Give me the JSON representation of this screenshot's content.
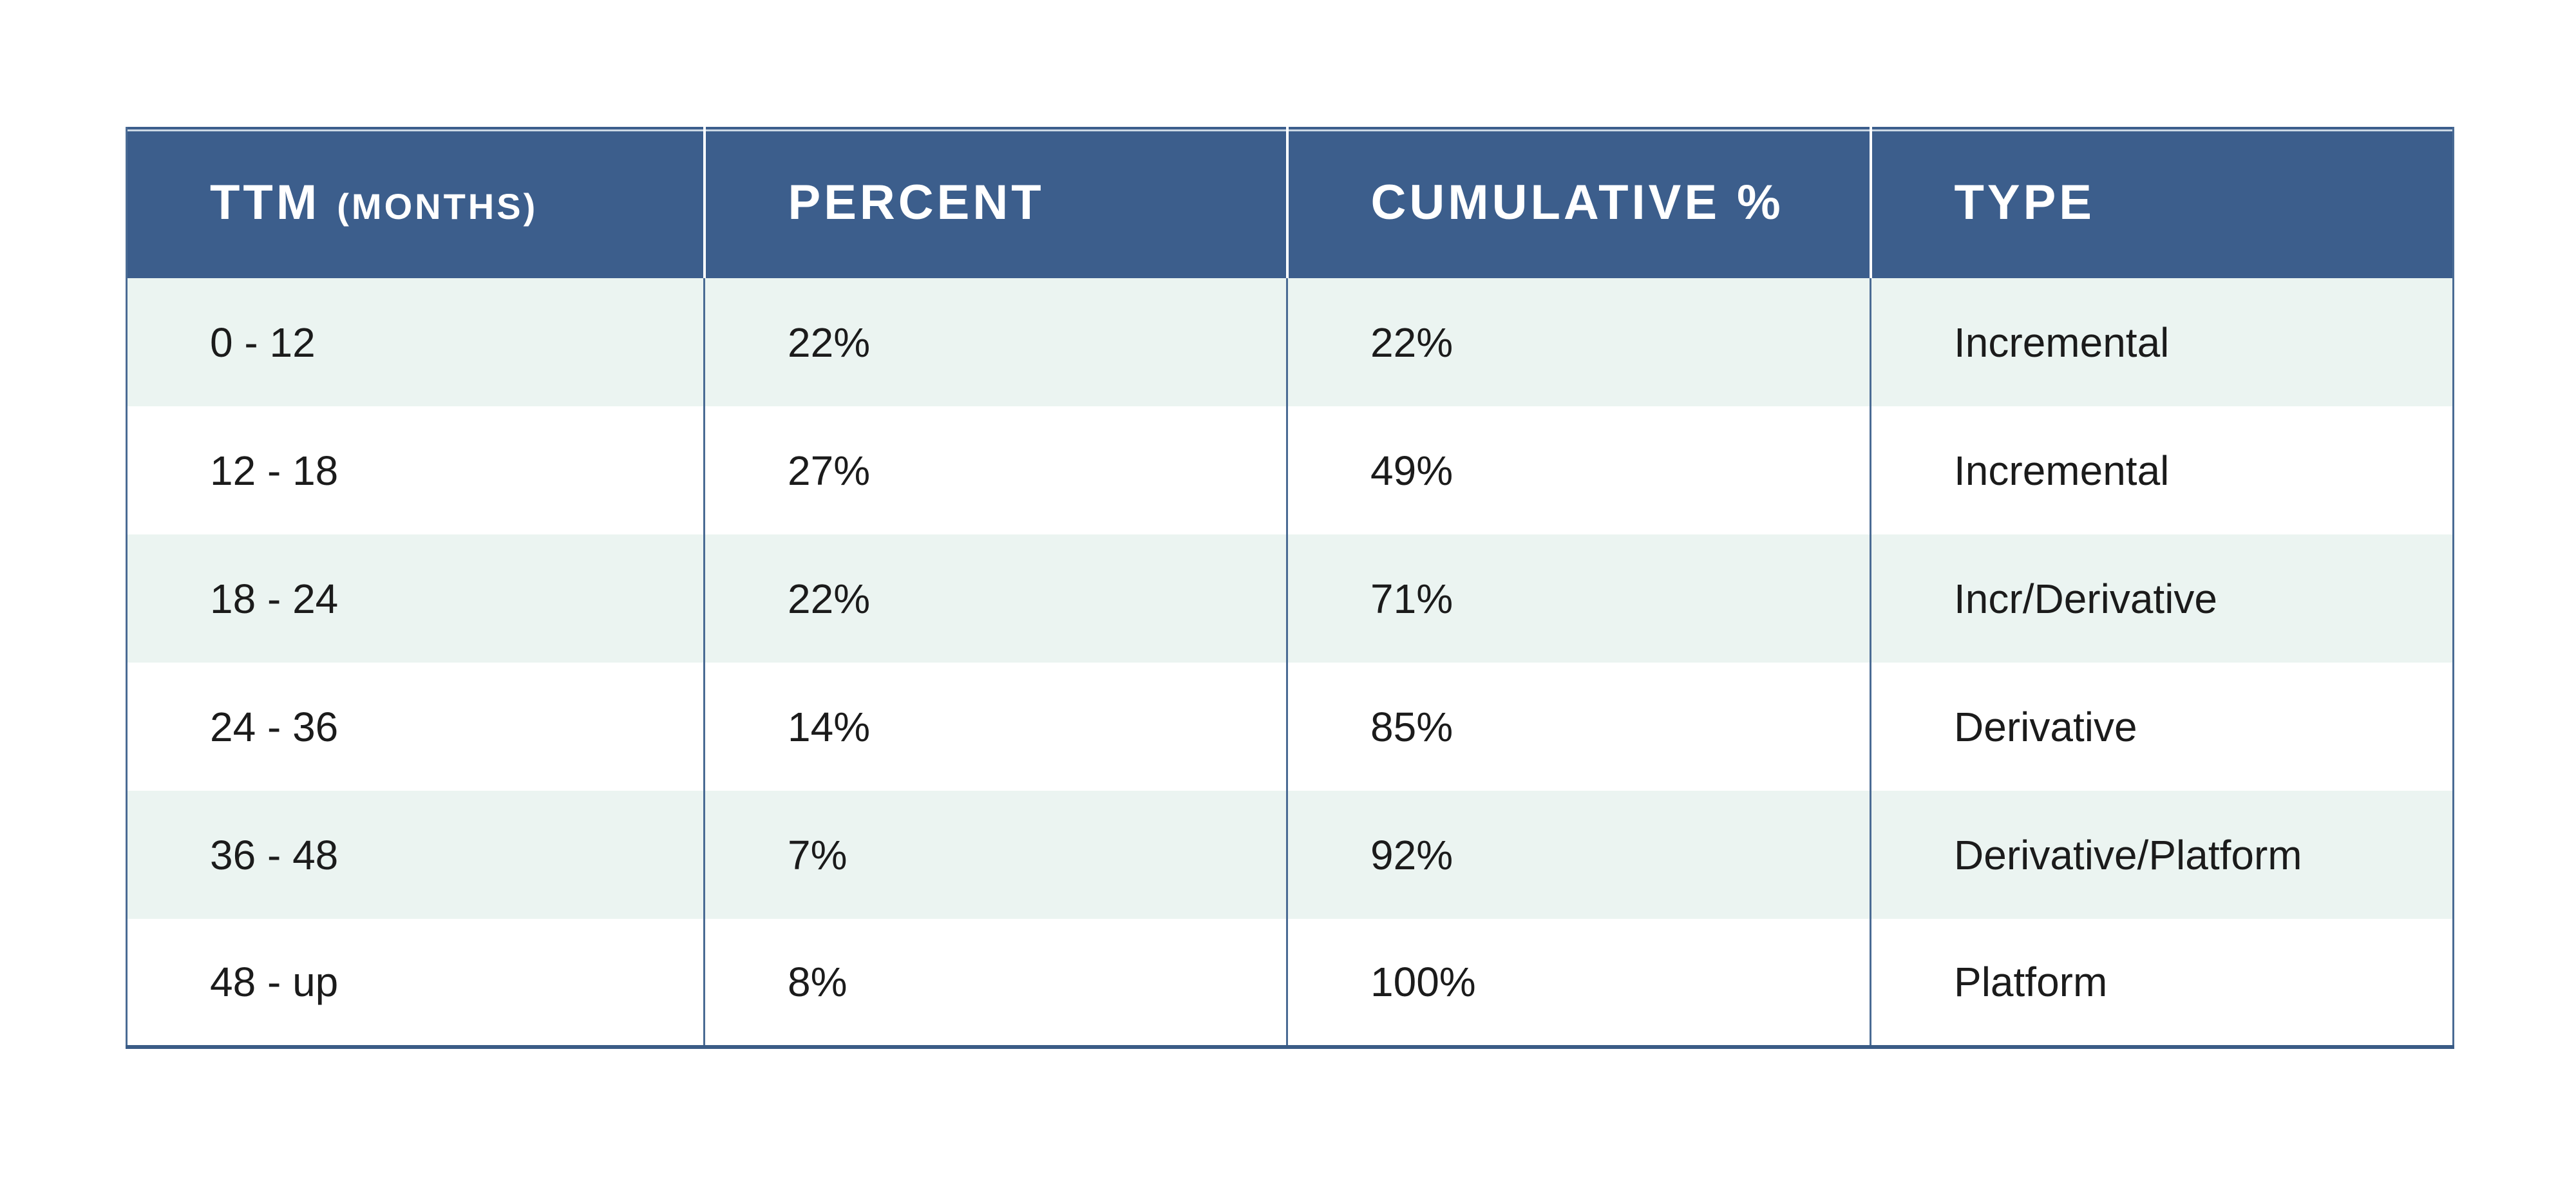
{
  "colors": {
    "header_bg": "#3C5E8C",
    "header_text": "#FFFFFF",
    "top_accent_line": "#CBD8E4",
    "stripe": "#EBF4F1",
    "grid_line": "#4A6B94",
    "bottom_border": "#3A5B86",
    "body_text": "#1B1B1B",
    "page_bg": "#FFFFFF"
  },
  "table": {
    "headers": [
      {
        "label": "TTM",
        "sublabel": "(MONTHS)"
      },
      {
        "label": "PERCENT"
      },
      {
        "label": "CUMULATIVE %"
      },
      {
        "label": "TYPE"
      }
    ]
  },
  "chart_data": {
    "type": "table",
    "columns": [
      "TTM (MONTHS)",
      "PERCENT",
      "CUMULATIVE %",
      "TYPE"
    ],
    "rows": [
      [
        "0 - 12",
        "22%",
        "22%",
        "Incremental"
      ],
      [
        "12 - 18",
        "27%",
        "49%",
        "Incremental"
      ],
      [
        "18 - 24",
        "22%",
        "71%",
        "Incr/Derivative"
      ],
      [
        "24 - 36",
        "14%",
        "85%",
        "Derivative"
      ],
      [
        "36 - 48",
        "7%",
        "92%",
        "Derivative/Platform"
      ],
      [
        "48 - up",
        "8%",
        "100%",
        "Platform"
      ]
    ]
  }
}
